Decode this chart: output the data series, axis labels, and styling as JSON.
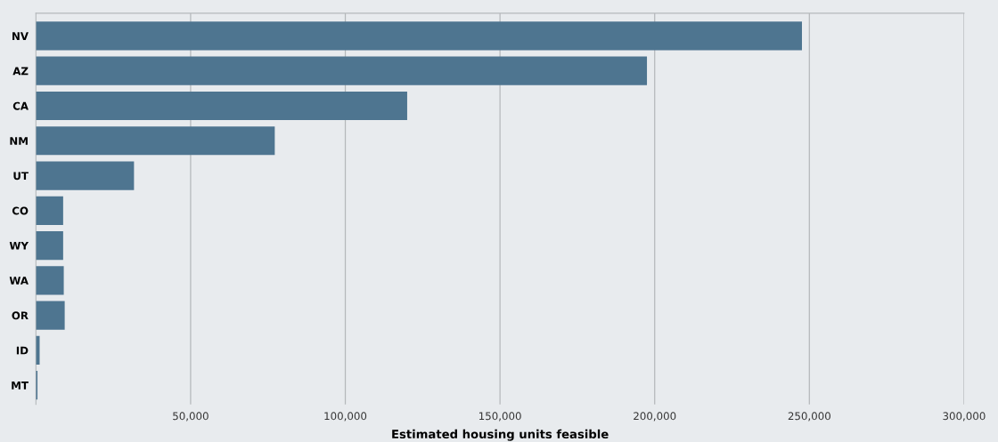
{
  "chart_data": {
    "type": "bar",
    "orientation": "horizontal",
    "categories": [
      "NV",
      "AZ",
      "CA",
      "NM",
      "UT",
      "CO",
      "WY",
      "WA",
      "OR",
      "ID",
      "MT"
    ],
    "values": [
      247600,
      197500,
      120000,
      77200,
      31700,
      8800,
      8800,
      9000,
      9300,
      1200,
      500
    ],
    "color": "#4e7590",
    "xlabel": "Estimated housing units feasible",
    "xlim": [
      0,
      300000
    ],
    "xticks": [
      {
        "value": 50000,
        "label": "50,000"
      },
      {
        "value": 100000,
        "label": "100,000"
      },
      {
        "value": 150000,
        "label": "150,000"
      },
      {
        "value": 200000,
        "label": "200,000"
      },
      {
        "value": 250000,
        "label": "250,000"
      },
      {
        "value": 300000,
        "label": "300,000"
      }
    ],
    "grid": "x"
  }
}
